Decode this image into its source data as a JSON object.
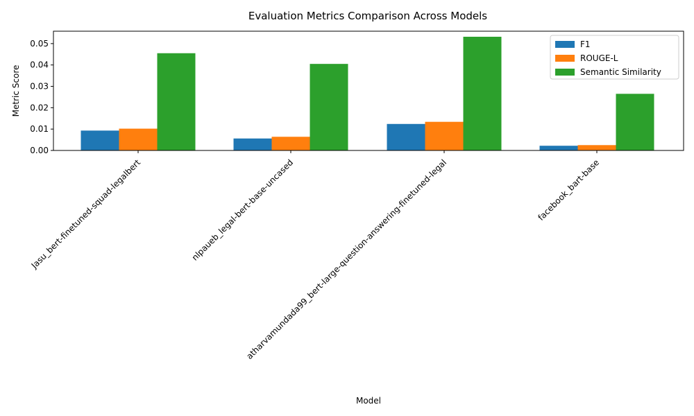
{
  "chart_data": {
    "type": "bar",
    "title": "Evaluation Metrics Comparison Across Models",
    "xlabel": "Model",
    "ylabel": "Metric Score",
    "categories": [
      "Jasu_bert-finetuned-squad-legalbert",
      "nlpaueb_legal-bert-base-uncased",
      "atharvamundada99_bert-large-question-answering-finetuned-legal",
      "facebook_bart-base"
    ],
    "series": [
      {
        "name": "F1",
        "color": "#1f77b4",
        "values": [
          0.0093,
          0.0056,
          0.0124,
          0.0022
        ]
      },
      {
        "name": "ROUGE-L",
        "color": "#ff7f0e",
        "values": [
          0.0102,
          0.0064,
          0.0134,
          0.0025
        ]
      },
      {
        "name": "Semantic Similarity",
        "color": "#2ca02c",
        "values": [
          0.0455,
          0.0405,
          0.0532,
          0.0265
        ]
      }
    ],
    "ylim": [
      0,
      0.0558
    ],
    "yticks": [
      "0.00",
      "0.01",
      "0.02",
      "0.03",
      "0.04",
      "0.05"
    ],
    "ytick_values": [
      0,
      0.01,
      0.02,
      0.03,
      0.04,
      0.05
    ],
    "legend_position": "top-right",
    "grid": false
  }
}
